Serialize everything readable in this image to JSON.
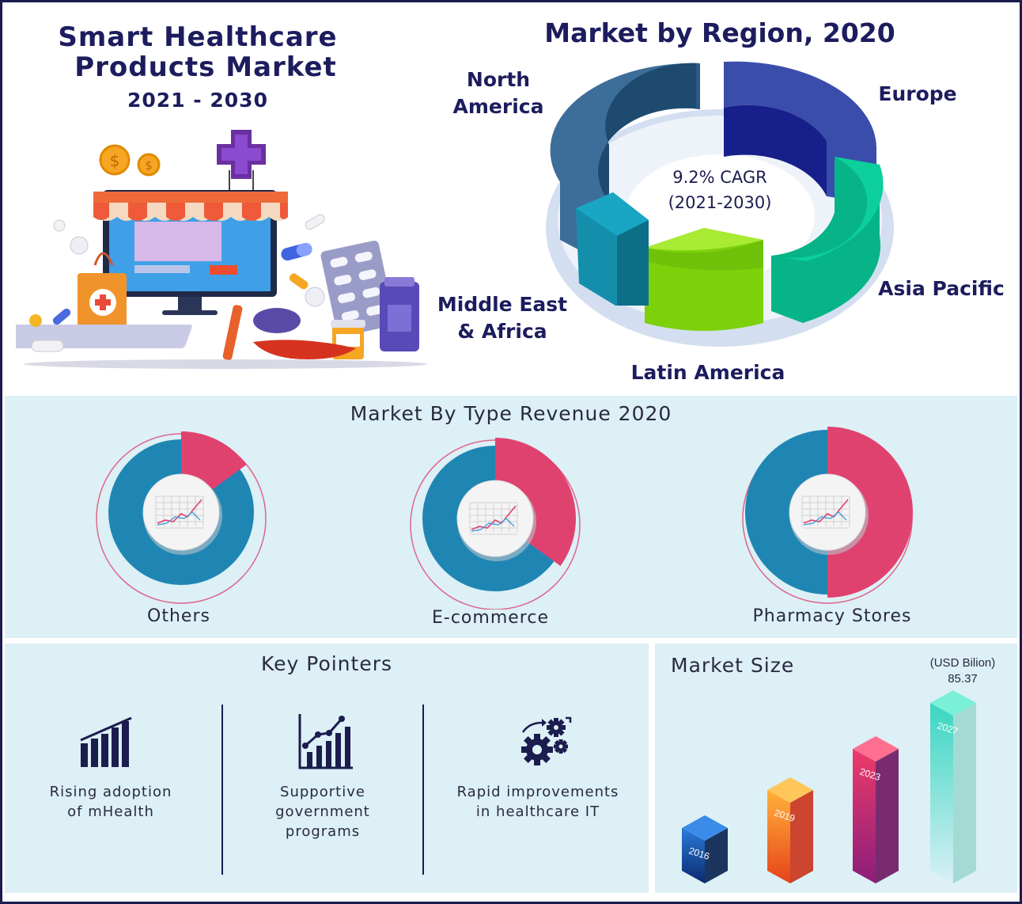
{
  "header": {
    "title_line1": "Smart Healthcare",
    "title_line2": "Products Market",
    "years": "2021 - 2030"
  },
  "region": {
    "title": "Market by Region, 2020",
    "cagr_line1": "9.2% CAGR",
    "cagr_line2": "(2021-2030)",
    "labels": {
      "north_america_1": "North",
      "north_america_2": "America",
      "europe": "Europe",
      "asia_pacific": "Asia Pacific",
      "latin_america": "Latin America",
      "mea_1": "Middle East",
      "mea_2": "& Africa"
    }
  },
  "type_section": {
    "title": "Market By Type Revenue 2020"
  },
  "key_pointers": {
    "title": "Key Pointers",
    "items": [
      {
        "line1": "Rising adoption",
        "line2": "of mHealth",
        "line3": "",
        "icon": "bar-chart-icon"
      },
      {
        "line1": "Supportive",
        "line2": "government",
        "line3": "programs",
        "icon": "growth-chart-icon"
      },
      {
        "line1": "Rapid improvements",
        "line2": "in healthcare IT",
        "line3": "",
        "icon": "gears-icon"
      }
    ]
  },
  "market_size": {
    "title": "Market Size",
    "unit": "(USD Bilion)",
    "value_label": "85.37"
  },
  "colors": {
    "navy": "#1c1c5e",
    "pink": "#e0426f",
    "blue": "#1f86b4",
    "panel": "#dcf0f6"
  },
  "chart_data": [
    {
      "type": "pie",
      "title": "Market by Region, 2020",
      "categories": [
        "North America",
        "Europe",
        "Asia Pacific",
        "Latin America",
        "Middle East & Africa"
      ],
      "colors": [
        "#3d6d99",
        "#1e2f8f",
        "#07b687",
        "#7cd10a",
        "#1598b4"
      ]
    },
    {
      "type": "pie",
      "title": "Market By Type Revenue 2020",
      "categories": [
        "Others",
        "E-commerce",
        "Pharmacy Stores"
      ],
      "values": [
        15,
        35,
        50
      ],
      "series_colors": {
        "highlight": "#e0426f",
        "rest": "#1f86b4"
      }
    },
    {
      "type": "bar",
      "title": "Market Size",
      "categories": [
        "2016",
        "2019",
        "2023",
        "2027"
      ],
      "values": [
        null,
        null,
        null,
        85.37
      ],
      "unit": "(USD Bilion)"
    }
  ]
}
